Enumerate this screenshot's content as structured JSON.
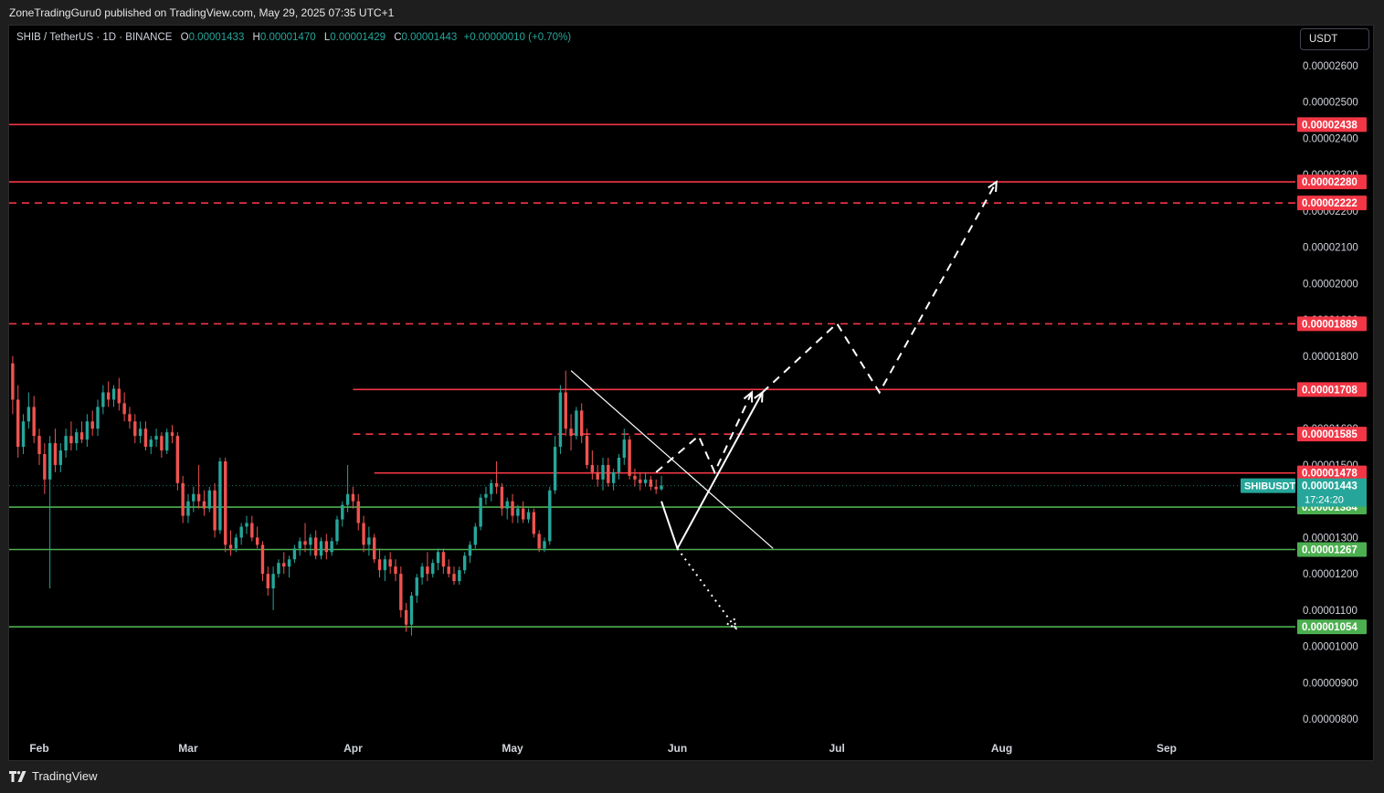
{
  "publisher": "ZoneTradingGuru0 published on TradingView.com, May 29, 2025 07:35 UTC+1",
  "legend": {
    "symbol": "SHIB / TetherUS · 1D · BINANCE",
    "open_label": "O",
    "open": "0.00001433",
    "high_label": "H",
    "high": "0.00001470",
    "low_label": "L",
    "low": "0.00001429",
    "close_label": "C",
    "close": "0.00001443",
    "change": "+0.00000010 (+0.70%)"
  },
  "currency": "USDT",
  "brand": "TradingView",
  "colors": {
    "up": "#26a69a",
    "down": "#ef5350",
    "resistance": "#f23645",
    "support": "#4caf50",
    "drawing": "#ffffff",
    "background": "#000000"
  },
  "chart_data": {
    "type": "candlestick",
    "y_unit": "USDT",
    "y_range": [
      7.5e-06,
      2.67e-05
    ],
    "y_ticks": [
      "0.00002600",
      "0.00002500",
      "0.00002400",
      "0.00002300",
      "0.00002200",
      "0.00002100",
      "0.00002000",
      "0.00001900",
      "0.00001800",
      "0.00001700",
      "0.00001600",
      "0.00001500",
      "0.00001400",
      "0.00001300",
      "0.00001200",
      "0.00001100",
      "0.00001000",
      "0.00000900",
      "0.00000800"
    ],
    "x_ticks": [
      {
        "label": "Feb",
        "date": "2025-02-01"
      },
      {
        "label": "Mar",
        "date": "2025-03-01"
      },
      {
        "label": "Apr",
        "date": "2025-04-01"
      },
      {
        "label": "May",
        "date": "2025-05-01"
      },
      {
        "label": "Jun",
        "date": "2025-06-01"
      },
      {
        "label": "Jul",
        "date": "2025-07-01"
      },
      {
        "label": "Aug",
        "date": "2025-08-01"
      },
      {
        "label": "Sep",
        "date": "2025-09-01"
      }
    ],
    "x_range": [
      "2025-01-20",
      "2025-09-25"
    ],
    "ohlc": [
      [
        "2025-01-20",
        1.9e-05,
        1.98e-05,
        1.85e-05,
        1.88e-05
      ],
      [
        "2025-01-21",
        1.88e-05,
        1.92e-05,
        1.82e-05,
        1.84e-05
      ],
      [
        "2025-01-22",
        1.84e-05,
        1.88e-05,
        1.78e-05,
        1.8e-05
      ],
      [
        "2025-01-23",
        1.8e-05,
        1.86e-05,
        1.74e-05,
        1.83e-05
      ],
      [
        "2025-01-24",
        1.83e-05,
        1.9e-05,
        1.81e-05,
        1.88e-05
      ],
      [
        "2025-01-25",
        1.88e-05,
        1.96e-05,
        1.86e-05,
        1.9e-05
      ],
      [
        "2025-01-26",
        1.9e-05,
        1.95e-05,
        1.76e-05,
        1.78e-05
      ],
      [
        "2025-01-27",
        1.78e-05,
        1.8e-05,
        1.64e-05,
        1.68e-05
      ],
      [
        "2025-01-28",
        1.68e-05,
        1.72e-05,
        1.52e-05,
        1.55e-05
      ],
      [
        "2025-01-29",
        1.55e-05,
        1.64e-05,
        1.53e-05,
        1.62e-05
      ],
      [
        "2025-01-30",
        1.62e-05,
        1.7e-05,
        1.6e-05,
        1.66e-05
      ],
      [
        "2025-01-31",
        1.66e-05,
        1.69e-05,
        1.56e-05,
        1.58e-05
      ],
      [
        "2025-02-01",
        1.58e-05,
        1.6e-05,
        1.5e-05,
        1.53e-05
      ],
      [
        "2025-02-02",
        1.53e-05,
        1.56e-05,
        1.42e-05,
        1.46e-05
      ],
      [
        "2025-02-03",
        1.46e-05,
        1.58e-05,
        1.16e-05,
        1.56e-05
      ],
      [
        "2025-02-04",
        1.56e-05,
        1.6e-05,
        1.48e-05,
        1.5e-05
      ],
      [
        "2025-02-05",
        1.5e-05,
        1.56e-05,
        1.48e-05,
        1.54e-05
      ],
      [
        "2025-02-06",
        1.54e-05,
        1.6e-05,
        1.52e-05,
        1.58e-05
      ],
      [
        "2025-02-07",
        1.58e-05,
        1.62e-05,
        1.54e-05,
        1.56e-05
      ],
      [
        "2025-02-08",
        1.56e-05,
        1.6e-05,
        1.54e-05,
        1.59e-05
      ],
      [
        "2025-02-09",
        1.59e-05,
        1.62e-05,
        1.56e-05,
        1.57e-05
      ],
      [
        "2025-02-10",
        1.57e-05,
        1.64e-05,
        1.55e-05,
        1.62e-05
      ],
      [
        "2025-02-11",
        1.62e-05,
        1.65e-05,
        1.58e-05,
        1.6e-05
      ],
      [
        "2025-02-12",
        1.6e-05,
        1.68e-05,
        1.58e-05,
        1.66e-05
      ],
      [
        "2025-02-13",
        1.66e-05,
        1.72e-05,
        1.64e-05,
        1.7e-05
      ],
      [
        "2025-02-14",
        1.7e-05,
        1.73e-05,
        1.66e-05,
        1.68e-05
      ],
      [
        "2025-02-15",
        1.68e-05,
        1.72e-05,
        1.66e-05,
        1.71e-05
      ],
      [
        "2025-02-16",
        1.71e-05,
        1.74e-05,
        1.65e-05,
        1.67e-05
      ],
      [
        "2025-02-17",
        1.67e-05,
        1.7e-05,
        1.62e-05,
        1.64e-05
      ],
      [
        "2025-02-18",
        1.64e-05,
        1.66e-05,
        1.6e-05,
        1.62e-05
      ],
      [
        "2025-02-19",
        1.62e-05,
        1.64e-05,
        1.56e-05,
        1.58e-05
      ],
      [
        "2025-02-20",
        1.58e-05,
        1.62e-05,
        1.56e-05,
        1.6e-05
      ],
      [
        "2025-02-21",
        1.6e-05,
        1.62e-05,
        1.54e-05,
        1.55e-05
      ],
      [
        "2025-02-22",
        1.55e-05,
        1.58e-05,
        1.53e-05,
        1.57e-05
      ],
      [
        "2025-02-23",
        1.57e-05,
        1.6e-05,
        1.55e-05,
        1.58e-05
      ],
      [
        "2025-02-24",
        1.58e-05,
        1.59e-05,
        1.52e-05,
        1.54e-05
      ],
      [
        "2025-02-25",
        1.54e-05,
        1.6e-05,
        1.53e-05,
        1.59e-05
      ],
      [
        "2025-02-26",
        1.59e-05,
        1.61e-05,
        1.56e-05,
        1.58e-05
      ],
      [
        "2025-02-27",
        1.58e-05,
        1.59e-05,
        1.43e-05,
        1.45e-05
      ],
      [
        "2025-02-28",
        1.45e-05,
        1.47e-05,
        1.34e-05,
        1.36e-05
      ],
      [
        "2025-03-01",
        1.36e-05,
        1.42e-05,
        1.34e-05,
        1.4e-05
      ],
      [
        "2025-03-02",
        1.4e-05,
        1.44e-05,
        1.37e-05,
        1.42e-05
      ],
      [
        "2025-03-03",
        1.42e-05,
        1.5e-05,
        1.38e-05,
        1.4e-05
      ],
      [
        "2025-03-04",
        1.4e-05,
        1.43e-05,
        1.36e-05,
        1.38e-05
      ],
      [
        "2025-03-05",
        1.38e-05,
        1.44e-05,
        1.37e-05,
        1.43e-05
      ],
      [
        "2025-03-06",
        1.43e-05,
        1.45e-05,
        1.3e-05,
        1.32e-05
      ],
      [
        "2025-03-07",
        1.32e-05,
        1.52e-05,
        1.31e-05,
        1.51e-05
      ],
      [
        "2025-03-08",
        1.51e-05,
        1.52e-05,
        1.26e-05,
        1.28e-05
      ],
      [
        "2025-03-09",
        1.28e-05,
        1.32e-05,
        1.25e-05,
        1.27e-05
      ],
      [
        "2025-03-10",
        1.27e-05,
        1.31e-05,
        1.26e-05,
        1.3e-05
      ],
      [
        "2025-03-11",
        1.3e-05,
        1.34e-05,
        1.28e-05,
        1.33e-05
      ],
      [
        "2025-03-12",
        1.33e-05,
        1.36e-05,
        1.31e-05,
        1.34e-05
      ],
      [
        "2025-03-13",
        1.34e-05,
        1.36e-05,
        1.29e-05,
        1.3e-05
      ],
      [
        "2025-03-14",
        1.3e-05,
        1.33e-05,
        1.27e-05,
        1.28e-05
      ],
      [
        "2025-03-15",
        1.28e-05,
        1.29e-05,
        1.18e-05,
        1.2e-05
      ],
      [
        "2025-03-16",
        1.2e-05,
        1.22e-05,
        1.14e-05,
        1.16e-05
      ],
      [
        "2025-03-17",
        1.16e-05,
        1.22e-05,
        1.1e-05,
        1.2e-05
      ],
      [
        "2025-03-18",
        1.2e-05,
        1.24e-05,
        1.19e-05,
        1.23e-05
      ],
      [
        "2025-03-19",
        1.23e-05,
        1.26e-05,
        1.2e-05,
        1.22e-05
      ],
      [
        "2025-03-20",
        1.22e-05,
        1.25e-05,
        1.19e-05,
        1.24e-05
      ],
      [
        "2025-03-21",
        1.24e-05,
        1.28e-05,
        1.23e-05,
        1.27e-05
      ],
      [
        "2025-03-22",
        1.27e-05,
        1.3e-05,
        1.25e-05,
        1.29e-05
      ],
      [
        "2025-03-23",
        1.29e-05,
        1.34e-05,
        1.26e-05,
        1.28e-05
      ],
      [
        "2025-03-24",
        1.28e-05,
        1.31e-05,
        1.25e-05,
        1.3e-05
      ],
      [
        "2025-03-25",
        1.3e-05,
        1.32e-05,
        1.24e-05,
        1.25e-05
      ],
      [
        "2025-03-26",
        1.25e-05,
        1.3e-05,
        1.24e-05,
        1.29e-05
      ],
      [
        "2025-03-27",
        1.29e-05,
        1.31e-05,
        1.24e-05,
        1.26e-05
      ],
      [
        "2025-03-28",
        1.26e-05,
        1.3e-05,
        1.25e-05,
        1.29e-05
      ],
      [
        "2025-03-29",
        1.29e-05,
        1.36e-05,
        1.28e-05,
        1.35e-05
      ],
      [
        "2025-03-30",
        1.35e-05,
        1.4e-05,
        1.33e-05,
        1.39e-05
      ],
      [
        "2025-03-31",
        1.39e-05,
        1.5e-05,
        1.37e-05,
        1.42e-05
      ],
      [
        "2025-04-01",
        1.42e-05,
        1.44e-05,
        1.38e-05,
        1.4e-05
      ],
      [
        "2025-04-02",
        1.4e-05,
        1.42e-05,
        1.32e-05,
        1.34e-05
      ],
      [
        "2025-04-03",
        1.34e-05,
        1.36e-05,
        1.26e-05,
        1.28e-05
      ],
      [
        "2025-04-04",
        1.28e-05,
        1.33e-05,
        1.25e-05,
        1.3e-05
      ],
      [
        "2025-04-05",
        1.3e-05,
        1.31e-05,
        1.23e-05,
        1.24e-05
      ],
      [
        "2025-04-06",
        1.24e-05,
        1.27e-05,
        1.19e-05,
        1.21e-05
      ],
      [
        "2025-04-07",
        1.21e-05,
        1.25e-05,
        1.18e-05,
        1.24e-05
      ],
      [
        "2025-04-08",
        1.24e-05,
        1.26e-05,
        1.2e-05,
        1.22e-05
      ],
      [
        "2025-04-09",
        1.22e-05,
        1.24e-05,
        1.18e-05,
        1.2e-05
      ],
      [
        "2025-04-10",
        1.2e-05,
        1.22e-05,
        1.08e-05,
        1.1e-05
      ],
      [
        "2025-04-11",
        1.1e-05,
        1.12e-05,
        1.04e-05,
        1.06e-05
      ],
      [
        "2025-04-12",
        1.06e-05,
        1.15e-05,
        1.03e-05,
        1.14e-05
      ],
      [
        "2025-04-13",
        1.14e-05,
        1.2e-05,
        1.12e-05,
        1.19e-05
      ],
      [
        "2025-04-14",
        1.19e-05,
        1.23e-05,
        1.17e-05,
        1.22e-05
      ],
      [
        "2025-04-15",
        1.22e-05,
        1.26e-05,
        1.18e-05,
        1.2e-05
      ],
      [
        "2025-04-16",
        1.2e-05,
        1.24e-05,
        1.19e-05,
        1.23e-05
      ],
      [
        "2025-04-17",
        1.23e-05,
        1.27e-05,
        1.21e-05,
        1.26e-05
      ],
      [
        "2025-04-18",
        1.26e-05,
        1.27e-05,
        1.2e-05,
        1.22e-05
      ],
      [
        "2025-04-19",
        1.22e-05,
        1.24e-05,
        1.19e-05,
        1.2e-05
      ],
      [
        "2025-04-20",
        1.2e-05,
        1.22e-05,
        1.17e-05,
        1.18e-05
      ],
      [
        "2025-04-21",
        1.18e-05,
        1.22e-05,
        1.17e-05,
        1.21e-05
      ],
      [
        "2025-04-22",
        1.21e-05,
        1.26e-05,
        1.2e-05,
        1.25e-05
      ],
      [
        "2025-04-23",
        1.25e-05,
        1.29e-05,
        1.23e-05,
        1.28e-05
      ],
      [
        "2025-04-24",
        1.28e-05,
        1.34e-05,
        1.27e-05,
        1.33e-05
      ],
      [
        "2025-04-25",
        1.33e-05,
        1.42e-05,
        1.32e-05,
        1.41e-05
      ],
      [
        "2025-04-26",
        1.41e-05,
        1.44e-05,
        1.39e-05,
        1.42e-05
      ],
      [
        "2025-04-27",
        1.42e-05,
        1.46e-05,
        1.4e-05,
        1.45e-05
      ],
      [
        "2025-04-28",
        1.45e-05,
        1.51e-05,
        1.42e-05,
        1.44e-05
      ],
      [
        "2025-04-29",
        1.44e-05,
        1.45e-05,
        1.36e-05,
        1.38e-05
      ],
      [
        "2025-04-30",
        1.38e-05,
        1.41e-05,
        1.35e-05,
        1.4e-05
      ],
      [
        "2025-05-01",
        1.4e-05,
        1.42e-05,
        1.34e-05,
        1.36e-05
      ],
      [
        "2025-05-02",
        1.36e-05,
        1.39e-05,
        1.34e-05,
        1.38e-05
      ],
      [
        "2025-05-03",
        1.38e-05,
        1.4e-05,
        1.34e-05,
        1.35e-05
      ],
      [
        "2025-05-04",
        1.35e-05,
        1.38e-05,
        1.34e-05,
        1.37e-05
      ],
      [
        "2025-05-05",
        1.37e-05,
        1.38e-05,
        1.3e-05,
        1.31e-05
      ],
      [
        "2025-05-06",
        1.31e-05,
        1.32e-05,
        1.26e-05,
        1.27e-05
      ],
      [
        "2025-05-07",
        1.27e-05,
        1.3e-05,
        1.26e-05,
        1.29e-05
      ],
      [
        "2025-05-08",
        1.29e-05,
        1.44e-05,
        1.28e-05,
        1.43e-05
      ],
      [
        "2025-05-09",
        1.43e-05,
        1.58e-05,
        1.42e-05,
        1.55e-05
      ],
      [
        "2025-05-10",
        1.55e-05,
        1.72e-05,
        1.53e-05,
        1.7e-05
      ],
      [
        "2025-05-11",
        1.7e-05,
        1.76e-05,
        1.58e-05,
        1.6e-05
      ],
      [
        "2025-05-12",
        1.6e-05,
        1.64e-05,
        1.54e-05,
        1.58e-05
      ],
      [
        "2025-05-13",
        1.58e-05,
        1.66e-05,
        1.57e-05,
        1.65e-05
      ],
      [
        "2025-05-14",
        1.65e-05,
        1.67e-05,
        1.56e-05,
        1.58e-05
      ],
      [
        "2025-05-15",
        1.58e-05,
        1.6e-05,
        1.49e-05,
        1.5e-05
      ],
      [
        "2025-05-16",
        1.5e-05,
        1.54e-05,
        1.46e-05,
        1.48e-05
      ],
      [
        "2025-05-17",
        1.48e-05,
        1.5e-05,
        1.44e-05,
        1.46e-05
      ],
      [
        "2025-05-18",
        1.46e-05,
        1.52e-05,
        1.43e-05,
        1.5e-05
      ],
      [
        "2025-05-19",
        1.5e-05,
        1.52e-05,
        1.44e-05,
        1.45e-05
      ],
      [
        "2025-05-20",
        1.45e-05,
        1.49e-05,
        1.43e-05,
        1.48e-05
      ],
      [
        "2025-05-21",
        1.48e-05,
        1.53e-05,
        1.46e-05,
        1.52e-05
      ],
      [
        "2025-05-22",
        1.52e-05,
        1.6e-05,
        1.5e-05,
        1.57e-05
      ],
      [
        "2025-05-23",
        1.57e-05,
        1.58e-05,
        1.46e-05,
        1.47e-05
      ],
      [
        "2025-05-24",
        1.47e-05,
        1.49e-05,
        1.44e-05,
        1.46e-05
      ],
      [
        "2025-05-25",
        1.46e-05,
        1.48e-05,
        1.43e-05,
        1.45e-05
      ],
      [
        "2025-05-26",
        1.45e-05,
        1.48e-05,
        1.44e-05,
        1.46e-05
      ],
      [
        "2025-05-27",
        1.46e-05,
        1.47e-05,
        1.43e-05,
        1.44e-05
      ],
      [
        "2025-05-28",
        1.44e-05,
        1.46e-05,
        1.42e-05,
        1.433e-05
      ],
      [
        "2025-05-29",
        1.433e-05,
        1.47e-05,
        1.429e-05,
        1.443e-05
      ]
    ],
    "levels": [
      {
        "price": 2.438e-05,
        "label": "0.00002438",
        "style": "solid",
        "color": "#f23645",
        "from": "2025-01-20"
      },
      {
        "price": 2.28e-05,
        "label": "0.00002280",
        "style": "solid",
        "color": "#f23645",
        "from": "2025-01-20"
      },
      {
        "price": 2.222e-05,
        "label": "0.00002222",
        "style": "dashed",
        "color": "#f23645",
        "from": "2025-01-20"
      },
      {
        "price": 1.889e-05,
        "label": "0.00001889",
        "style": "dashed",
        "color": "#f23645",
        "from": "2025-01-20"
      },
      {
        "price": 1.708e-05,
        "label": "0.00001708",
        "style": "solid",
        "color": "#f23645",
        "from": "2025-04-01"
      },
      {
        "price": 1.585e-05,
        "label": "0.00001585",
        "style": "dashed",
        "color": "#f23645",
        "from": "2025-04-01"
      },
      {
        "price": 1.478e-05,
        "label": "0.00001478",
        "style": "solid",
        "color": "#f23645",
        "from": "2025-04-05"
      },
      {
        "price": 1.384e-05,
        "label": "0.00001384",
        "style": "solid",
        "color": "#4caf50",
        "from": "2025-01-20"
      },
      {
        "price": 1.267e-05,
        "label": "0.00001267",
        "style": "solid",
        "color": "#4caf50",
        "from": "2025-01-20"
      },
      {
        "price": 1.054e-05,
        "label": "0.00001054",
        "style": "solid",
        "color": "#4caf50",
        "from": "2025-01-20"
      }
    ],
    "last_price": {
      "symbol": "SHIBUSDT",
      "price": 1.443e-05,
      "label": "0.00001443",
      "countdown": "17:24:20"
    },
    "drawings": [
      {
        "name": "trendline",
        "style": "solid",
        "points": [
          [
            "2025-05-12",
            1.76e-05
          ],
          [
            "2025-06-19",
            1.27e-05
          ]
        ]
      },
      {
        "name": "main-projection",
        "style": "solid",
        "points": [
          [
            "2025-05-29",
            1.4e-05
          ],
          [
            "2025-06-01",
            1.27e-05
          ],
          [
            "2025-06-17",
            1.7e-05
          ]
        ]
      },
      {
        "name": "bull-projection-early",
        "style": "dashed",
        "points": [
          [
            "2025-05-28",
            1.48e-05
          ],
          [
            "2025-06-05",
            1.58e-05
          ],
          [
            "2025-06-08",
            1.48e-05
          ],
          [
            "2025-06-15",
            1.7e-05
          ]
        ]
      },
      {
        "name": "bull-projection-main",
        "style": "dashed",
        "points": [
          [
            "2025-06-17",
            1.7e-05
          ],
          [
            "2025-07-01",
            1.89e-05
          ],
          [
            "2025-07-09",
            1.7e-05
          ],
          [
            "2025-07-31",
            2.28e-05
          ]
        ]
      },
      {
        "name": "bear-projection",
        "style": "dotted",
        "points": [
          [
            "2025-06-01",
            1.27e-05
          ],
          [
            "2025-06-12",
            1.05e-05
          ]
        ]
      }
    ]
  }
}
